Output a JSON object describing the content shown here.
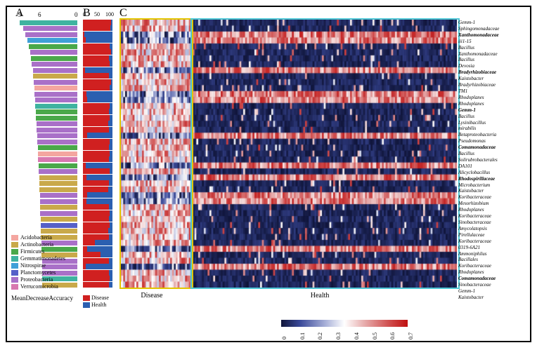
{
  "labels": {
    "A": "A",
    "B": "B",
    "C": "C",
    "mda": "MeanDecreaseAccuracy",
    "disease": "Disease",
    "health": "Health"
  },
  "panA": {
    "axis_ticks": [
      9,
      6,
      0
    ],
    "phyla_colors": {
      "Acidobacteria": "#f4a6a0",
      "Actinobacteria": "#c9a94a",
      "Firmicutes": "#4aa84a",
      "Gemmatimonadetes": "#3fb3a0",
      "Nitrospirae": "#3fa0d8",
      "Planctomycetes": "#5560c8",
      "Proteobacteria": "#a970c8",
      "Verrucomicrobia": "#d878b0"
    },
    "rows": [
      {
        "phylum": "Gemmatimonadetes",
        "v": 8.8
      },
      {
        "phylum": "Proteobacteria",
        "v": 8.2
      },
      {
        "phylum": "Proteobacteria",
        "v": 7.9
      },
      {
        "phylum": "Nitrospirae",
        "v": 7.6
      },
      {
        "phylum": "Firmicutes",
        "v": 7.4
      },
      {
        "phylum": "Proteobacteria",
        "v": 7.2
      },
      {
        "phylum": "Firmicutes",
        "v": 7.1
      },
      {
        "phylum": "Proteobacteria",
        "v": 7.0
      },
      {
        "phylum": "Proteobacteria",
        "v": 6.8
      },
      {
        "phylum": "Actinobacteria",
        "v": 6.7
      },
      {
        "phylum": "Proteobacteria",
        "v": 6.6
      },
      {
        "phylum": "Acidobacteria",
        "v": 6.5
      },
      {
        "phylum": "Proteobacteria",
        "v": 6.5
      },
      {
        "phylum": "Proteobacteria",
        "v": 6.4
      },
      {
        "phylum": "Gemmatimonadetes",
        "v": 6.4
      },
      {
        "phylum": "Firmicutes",
        "v": 6.3
      },
      {
        "phylum": "Firmicutes",
        "v": 6.3
      },
      {
        "phylum": "Proteobacteria",
        "v": 6.2
      },
      {
        "phylum": "Proteobacteria",
        "v": 6.2
      },
      {
        "phylum": "Proteobacteria",
        "v": 6.1
      },
      {
        "phylum": "Proteobacteria",
        "v": 6.1
      },
      {
        "phylum": "Firmicutes",
        "v": 6.0
      },
      {
        "phylum": "Acidobacteria",
        "v": 6.0
      },
      {
        "phylum": "Verrucomicrobia",
        "v": 6.0
      },
      {
        "phylum": "Firmicutes",
        "v": 5.9
      },
      {
        "phylum": "Proteobacteria",
        "v": 5.9
      },
      {
        "phylum": "Actinobacteria",
        "v": 5.8
      },
      {
        "phylum": "Actinobacteria",
        "v": 5.8
      },
      {
        "phylum": "Actinobacteria",
        "v": 5.8
      },
      {
        "phylum": "Proteobacteria",
        "v": 5.7
      },
      {
        "phylum": "Proteobacteria",
        "v": 5.7
      },
      {
        "phylum": "Actinobacteria",
        "v": 5.7
      },
      {
        "phylum": "Proteobacteria",
        "v": 5.7
      },
      {
        "phylum": "Actinobacteria",
        "v": 5.6
      },
      {
        "phylum": "Planctomycetes",
        "v": 5.6
      },
      {
        "phylum": "Actinobacteria",
        "v": 5.6
      },
      {
        "phylum": "Actinobacteria",
        "v": 5.6
      },
      {
        "phylum": "Proteobacteria",
        "v": 5.5
      },
      {
        "phylum": "Firmicutes",
        "v": 5.5
      },
      {
        "phylum": "Actinobacteria",
        "v": 5.5
      },
      {
        "phylum": "Proteobacteria",
        "v": 5.4
      },
      {
        "phylum": "Proteobacteria",
        "v": 5.4
      },
      {
        "phylum": "Proteobacteria",
        "v": 5.4
      },
      {
        "phylum": "Gemmatimonadetes",
        "v": 5.4
      },
      {
        "phylum": "Actinobacteria",
        "v": 5.4
      }
    ]
  },
  "panB": {
    "axis_ticks": [
      0,
      50,
      100
    ],
    "rows": [
      95,
      92,
      5,
      10,
      90,
      95,
      88,
      90,
      8,
      88,
      95,
      90,
      12,
      15,
      90,
      88,
      90,
      85,
      88,
      15,
      90,
      88,
      90,
      88,
      10,
      90,
      12,
      88,
      85,
      15,
      12,
      88,
      90,
      88,
      90,
      85,
      88,
      40,
      15,
      60,
      88,
      10,
      88,
      90,
      88
    ]
  },
  "panC": {
    "n_cols": 180,
    "disease_cols": 38,
    "colormap": [
      "#10153a",
      "#3b4a9a",
      "#a8b0d8",
      "#ffffff",
      "#e8b0b0",
      "#d05050",
      "#c01010"
    ],
    "cbar_ticks": [
      "0",
      "0.1",
      "0.2",
      "0.3",
      "0.4",
      "0.5",
      "0.6",
      "0.7"
    ]
  },
  "rowLabels": [
    {
      "t": "Gemm-1"
    },
    {
      "t": "Sphingomonadaceae"
    },
    {
      "t": "Xanthomonadaceae",
      "b": 1
    },
    {
      "t": "iii1-15"
    },
    {
      "t": "Bacillus"
    },
    {
      "t": "Xanthomonadaceae"
    },
    {
      "t": "Bacillus"
    },
    {
      "t": "Devosia"
    },
    {
      "t": "Bradyrhizobiaceae",
      "b": 1
    },
    {
      "t": "Kaistobacter"
    },
    {
      "t": "Bradyrhizobiaceae"
    },
    {
      "t": "TM1"
    },
    {
      "t": "Rhodoplanes"
    },
    {
      "t": "Rhodoplanes"
    },
    {
      "t": "Gemm-1",
      "b": 1
    },
    {
      "t": "Bacillus"
    },
    {
      "t": "Lysinibacillus"
    },
    {
      "t": "mirabilis"
    },
    {
      "t": "Betaproteobacteria"
    },
    {
      "t": "Pseudomonas"
    },
    {
      "t": "Comamonadaceae",
      "b": 1
    },
    {
      "t": "Bacillus"
    },
    {
      "t": "Solirubrobacterales"
    },
    {
      "t": "DA101"
    },
    {
      "t": "Alicyclobacillus"
    },
    {
      "t": "Rhodospirillaceae",
      "b": 1
    },
    {
      "t": "Microbacterium"
    },
    {
      "t": "Kaistobacter"
    },
    {
      "t": "Koribacteraceae"
    },
    {
      "t": "Mesorhizobium"
    },
    {
      "t": "Rhodoplanes"
    },
    {
      "t": "Koribacteraceae"
    },
    {
      "t": "Sinobacteraceae"
    },
    {
      "t": "Amycolatopsis"
    },
    {
      "t": "Pirellulaceae"
    },
    {
      "t": "Koribacteraceae"
    },
    {
      "t": "0319-6A21"
    },
    {
      "t": "Ammoniphilus"
    },
    {
      "t": "Bacillales"
    },
    {
      "t": "Koribacteraceae"
    },
    {
      "t": "Rhodoplanes"
    },
    {
      "t": "Comamonadaceae",
      "b": 1
    },
    {
      "t": "Sinobacteraceae"
    },
    {
      "t": "Gemm-1"
    },
    {
      "t": "Kaistobacter"
    }
  ],
  "legendPhyla": [
    "Acidobacteria",
    "Actinobacteria",
    "Firmicutes",
    "Gemmatimonadetes",
    "Nitrospirae",
    "Planctomycetes",
    "Proteobacteria",
    "Verrucomicrobia"
  ],
  "legendB": [
    {
      "c": "#d02020",
      "t": "Disease"
    },
    {
      "c": "#2b5fb0",
      "t": "Health"
    }
  ]
}
